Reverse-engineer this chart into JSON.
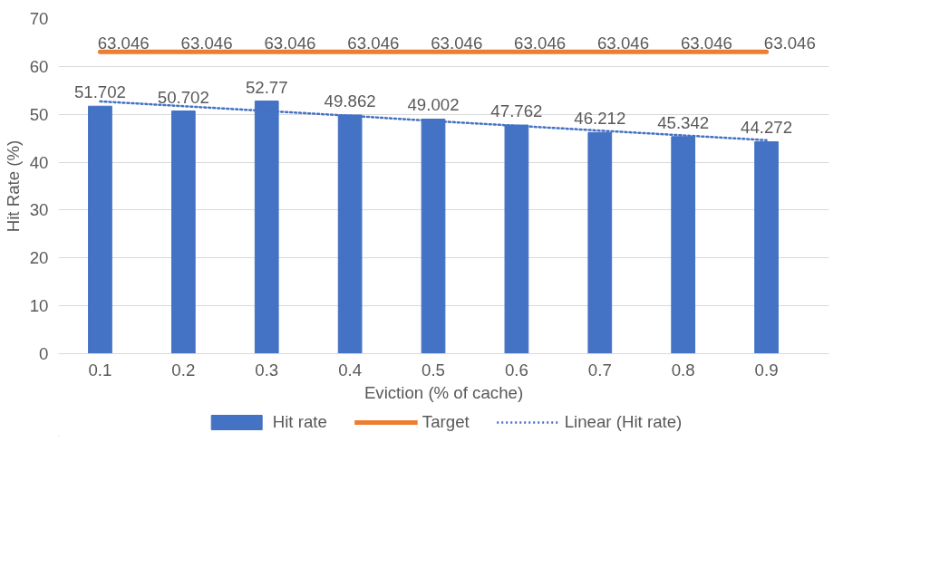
{
  "chart_data": {
    "type": "bar",
    "xlabel": "Eviction (% of cache)",
    "ylabel": "Hit Rate (%)",
    "categories": [
      "0.1",
      "0.2",
      "0.3",
      "0.4",
      "0.5",
      "0.6",
      "0.7",
      "0.8",
      "0.9"
    ],
    "series": [
      {
        "name": "Hit rate",
        "color": "#4472c4",
        "values": [
          51.702,
          50.702,
          52.77,
          49.862,
          49.002,
          47.762,
          46.212,
          45.342,
          44.272
        ],
        "value_labels": [
          "51.702",
          "50.702",
          "52.77",
          "49.862",
          "49.002",
          "47.762",
          "46.212",
          "45.342",
          "44.272"
        ]
      },
      {
        "name": "Target",
        "type": "line",
        "color": "#ed7d31",
        "line_style": "solid",
        "values": [
          63.046,
          63.046,
          63.046,
          63.046,
          63.046,
          63.046,
          63.046,
          63.046,
          63.046
        ],
        "value_labels": [
          "63.046",
          "63.046",
          "63.046",
          "63.046",
          "63.046",
          "63.046",
          "63.046",
          "63.046",
          "63.046"
        ]
      },
      {
        "name": "Linear (Hit rate)",
        "type": "line",
        "color": "#4472c4",
        "line_style": "dotted",
        "values": [
          52.7,
          51.7,
          50.7,
          49.7,
          48.6,
          47.6,
          46.6,
          45.6,
          44.6
        ]
      }
    ],
    "ylim": [
      0,
      70
    ],
    "yticks": [
      0,
      10,
      20,
      30,
      40,
      50,
      60,
      70
    ],
    "grid": "y",
    "legend": "bottom",
    "marker": "none"
  }
}
